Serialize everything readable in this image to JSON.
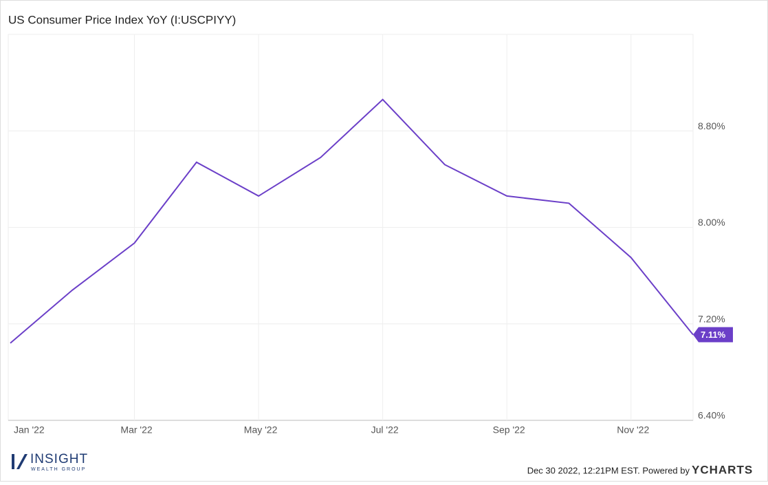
{
  "chart_data": {
    "type": "line",
    "title": "US Consumer Price Index YoY (I:USCPIYY)",
    "categories": [
      "Jan '22",
      null,
      "Mar '22",
      null,
      "May '22",
      null,
      "Jul '22",
      null,
      "Sep '22",
      null,
      "Nov '22",
      null
    ],
    "series": [
      {
        "name": "US Consumer Price Index YoY",
        "color": "#6b3fc8",
        "values": [
          7.04,
          7.48,
          7.87,
          8.54,
          8.26,
          8.58,
          9.06,
          8.52,
          8.26,
          8.2,
          7.75,
          7.11
        ],
        "value_labels": [
          null,
          null,
          null,
          null,
          null,
          null,
          null,
          null,
          null,
          null,
          null,
          "7.11%"
        ]
      }
    ],
    "ylim": [
      6.4,
      9.6
    ],
    "yticks": [
      {
        "value": 6.4,
        "label": "6.40%"
      },
      {
        "value": 7.2,
        "label": "7.20%"
      },
      {
        "value": 8.0,
        "label": "8.00%"
      },
      {
        "value": 8.8,
        "label": "8.80%"
      }
    ],
    "grid": true
  },
  "footer": {
    "logo": "INSIGHT",
    "logo_sub": "WEALTH GROUP",
    "timestamp": "Dec 30 2022, 12:21PM EST. Powered by",
    "brand": "YCHARTS"
  }
}
